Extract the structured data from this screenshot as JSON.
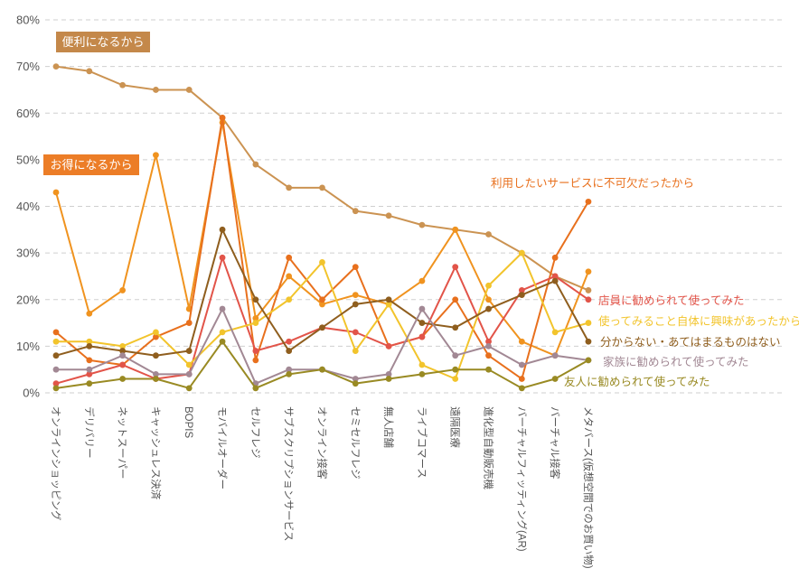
{
  "chart_data": {
    "type": "line",
    "title": "",
    "ylabel_format": "{v}%",
    "ylim": [
      0,
      80
    ],
    "ytick_step": 10,
    "grid": "horizontal-dashed",
    "legend_position": "inline-annotations",
    "categories": [
      "オンラインショッピング",
      "デリバリー",
      "ネットスーパー",
      "キャッシュレス決済",
      "BOPIS",
      "モバイルオーダー",
      "セルフレジ",
      "サブスクリプションサービス",
      "オンライン接客",
      "セミセルフレジ",
      "無人店舗",
      "ライブコマース",
      "遠隔医療",
      "進化型自動販売機",
      "バーチャルフィッティング(AR)",
      "バーチャル接客",
      "メタバース(仮想空間でのお買い物)"
    ],
    "series": [
      {
        "name": "便利になるから",
        "color": "#cb9352",
        "label_style": "box",
        "box_color": "#c4884a",
        "values": [
          70,
          69,
          66,
          65,
          65,
          59,
          49,
          44,
          44,
          39,
          38,
          36,
          35,
          34,
          30,
          25,
          22
        ]
      },
      {
        "name": "お得になるから",
        "color": "#f0931f",
        "label_style": "box",
        "box_color": "#ec7d27",
        "values": [
          43,
          17,
          22,
          51,
          18,
          58,
          16,
          25,
          19,
          21,
          19,
          24,
          35,
          20,
          11,
          8,
          26
        ]
      },
      {
        "name": "利用したいサービスに不可欠だったから",
        "color": "#e8701d",
        "label_style": "plain",
        "values": [
          13,
          7,
          6,
          12,
          15,
          59,
          7,
          29,
          20,
          27,
          10,
          12,
          20,
          8,
          3,
          29,
          41
        ]
      },
      {
        "name": "店員に勧められて使ってみた",
        "color": "#e25449",
        "label_style": "plain",
        "values": [
          2,
          4,
          6,
          3,
          4,
          29,
          9,
          11,
          14,
          13,
          10,
          12,
          27,
          11,
          22,
          25,
          20
        ]
      },
      {
        "name": "使ってみること自体に興味があったから",
        "color": "#f2c42c",
        "label_style": "plain",
        "values": [
          11,
          11,
          10,
          13,
          6,
          13,
          15,
          20,
          28,
          9,
          19,
          6,
          3,
          23,
          30,
          13,
          15
        ]
      },
      {
        "name": "分からない・あてはまるものはない",
        "color": "#8f5e1e",
        "label_style": "plain",
        "values": [
          8,
          10,
          9,
          8,
          9,
          35,
          20,
          9,
          14,
          19,
          20,
          15,
          14,
          18,
          21,
          24,
          11
        ]
      },
      {
        "name": "家族に勧められて使ってみた",
        "color": "#a28894",
        "label_style": "plain",
        "values": [
          5,
          5,
          8,
          4,
          4,
          18,
          2,
          5,
          5,
          3,
          4,
          18,
          8,
          10,
          6,
          8,
          7
        ]
      },
      {
        "name": "友人に勧められて使ってみた",
        "color": "#998a23",
        "label_style": "plain",
        "values": [
          1,
          2,
          3,
          3,
          1,
          11,
          1,
          4,
          5,
          2,
          3,
          4,
          5,
          5,
          1,
          3,
          7
        ]
      }
    ],
    "ytick_labels": [
      "0%",
      "10%",
      "20%",
      "30%",
      "40%",
      "50%",
      "60%",
      "70%",
      "80%"
    ]
  }
}
